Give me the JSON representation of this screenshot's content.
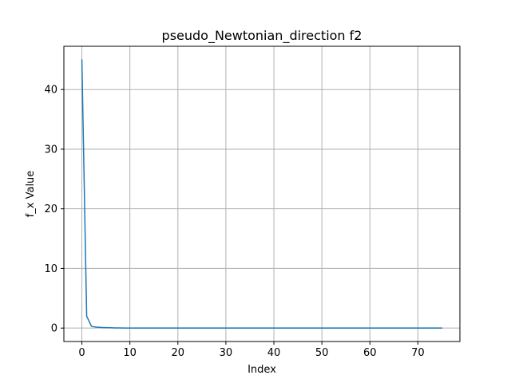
{
  "chart_data": {
    "type": "line",
    "title": "pseudo_Newtonian_direction f2",
    "xlabel": "Index",
    "ylabel": "f_x Value",
    "xlim": [
      -3.75,
      78.75
    ],
    "ylim": [
      -2.25,
      47.25
    ],
    "grid": true,
    "xticks": [
      "0",
      "10",
      "20",
      "30",
      "40",
      "50",
      "60",
      "70"
    ],
    "yticks": [
      "0",
      "10",
      "20",
      "30",
      "40"
    ],
    "xtick_values": [
      0,
      10,
      20,
      30,
      40,
      50,
      60,
      70
    ],
    "ytick_values": [
      0,
      10,
      20,
      30,
      40
    ],
    "series": [
      {
        "color": "#1f77b4",
        "x": [
          0,
          1,
          2,
          3,
          4,
          5,
          6,
          7,
          8,
          9,
          10,
          11,
          12,
          13,
          14,
          15,
          16,
          17,
          18,
          19,
          20,
          21,
          22,
          23,
          24,
          25,
          26,
          27,
          28,
          29,
          30,
          31,
          32,
          33,
          34,
          35,
          36,
          37,
          38,
          39,
          40,
          41,
          42,
          43,
          44,
          45,
          46,
          47,
          48,
          49,
          50,
          51,
          52,
          53,
          54,
          55,
          56,
          57,
          58,
          59,
          60,
          61,
          62,
          63,
          64,
          65,
          66,
          67,
          68,
          69,
          70,
          71,
          72,
          73,
          74,
          75
        ],
        "y": [
          45,
          2,
          0.3,
          0.15,
          0.1,
          0.07,
          0.05,
          0.03,
          0.02,
          0.01,
          0,
          0,
          0,
          0,
          0,
          0,
          0,
          0,
          0,
          0,
          0,
          0,
          0,
          0,
          0,
          0,
          0,
          0,
          0,
          0,
          0,
          0,
          0,
          0,
          0,
          0,
          0,
          0,
          0,
          0,
          0,
          0,
          0,
          0,
          0,
          0,
          0,
          0,
          0,
          0,
          0,
          0,
          0,
          0,
          0,
          0,
          0,
          0,
          0,
          0,
          0,
          0,
          0,
          0,
          0,
          0,
          0,
          0,
          0,
          0,
          0,
          0,
          0,
          0,
          0,
          0
        ]
      }
    ]
  }
}
